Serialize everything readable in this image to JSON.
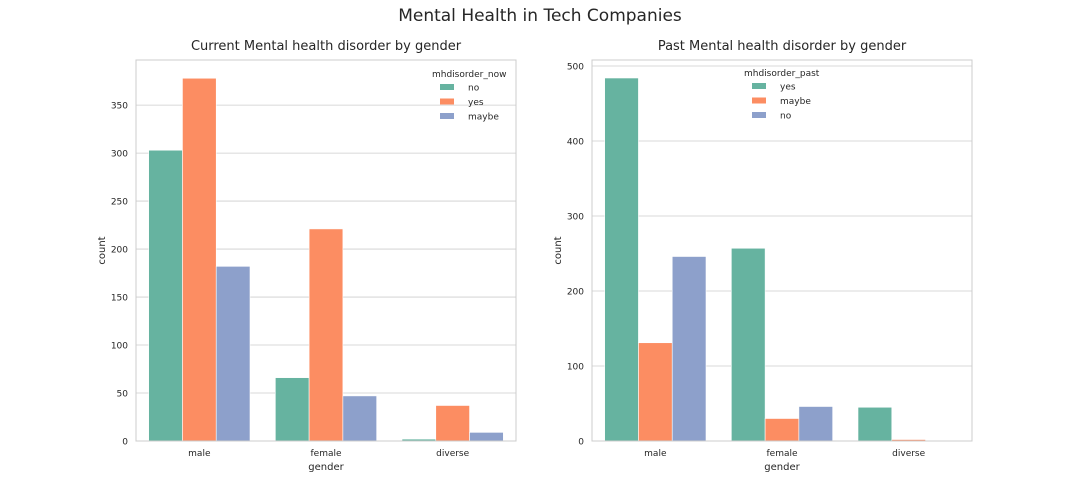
{
  "figure_title": "Mental Health in Tech Companies",
  "colors": {
    "green": "#66b3a0",
    "orange": "#fc8d62",
    "blue": "#8da0cb",
    "grid": "#cccccc",
    "spine": "#cccccc"
  },
  "chart_data": [
    {
      "type": "bar",
      "title": "Current Mental health disorder by gender",
      "xlabel": "gender",
      "ylabel": "count",
      "categories": [
        "male",
        "female",
        "diverse"
      ],
      "ylim": [
        0,
        397
      ],
      "yticks": [
        0,
        50,
        100,
        150,
        200,
        250,
        300,
        350
      ],
      "grid": true,
      "legend": {
        "title": "mhdisorder_now",
        "placement": "top-right"
      },
      "series": [
        {
          "name": "no",
          "color": "#66b3a0",
          "values": [
            303,
            66,
            2
          ]
        },
        {
          "name": "yes",
          "color": "#fc8d62",
          "values": [
            378,
            221,
            37
          ]
        },
        {
          "name": "maybe",
          "color": "#8da0cb",
          "values": [
            182,
            47,
            9
          ]
        }
      ]
    },
    {
      "type": "bar",
      "title": "Past Mental health disorder by gender",
      "xlabel": "gender",
      "ylabel": "count",
      "categories": [
        "male",
        "female",
        "diverse"
      ],
      "ylim": [
        0,
        508
      ],
      "yticks": [
        0,
        100,
        200,
        300,
        400,
        500
      ],
      "grid": true,
      "legend": {
        "title": "mhdisorder_past",
        "placement": "top-center"
      },
      "series": [
        {
          "name": "yes",
          "color": "#66b3a0",
          "values": [
            484,
            257,
            45
          ]
        },
        {
          "name": "maybe",
          "color": "#fc8d62",
          "values": [
            131,
            30,
            2
          ]
        },
        {
          "name": "no",
          "color": "#8da0cb",
          "values": [
            246,
            46,
            0
          ]
        }
      ]
    }
  ]
}
